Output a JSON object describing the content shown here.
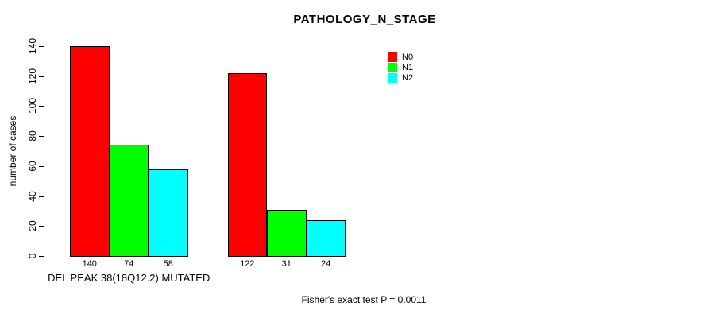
{
  "chart_data": {
    "type": "bar",
    "title": "PATHOLOGY_N_STAGE",
    "ylabel": "number of cases",
    "ylim": [
      0,
      140
    ],
    "yticks": [
      0,
      20,
      40,
      60,
      80,
      100,
      120,
      140
    ],
    "grid": false,
    "legend_position": "top-right",
    "group_labels": [
      "DEL PEAK 38(18Q12.2) MUTATED",
      ""
    ],
    "series": [
      {
        "name": "N0",
        "color": "#ff0000",
        "values": [
          140,
          122
        ]
      },
      {
        "name": "N1",
        "color": "#00ff00",
        "values": [
          74,
          31
        ]
      },
      {
        "name": "N2",
        "color": "#00ffff",
        "values": [
          58,
          24
        ]
      }
    ],
    "bar_value_labels": [
      [
        "140",
        "74",
        "58"
      ],
      [
        "122",
        "31",
        "24"
      ]
    ],
    "footnote": "Fisher's exact test P = 0.0011"
  }
}
